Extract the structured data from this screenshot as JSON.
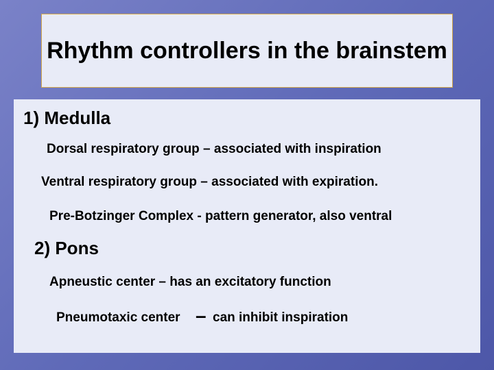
{
  "slide": {
    "background_gradient": [
      "#7a82c8",
      "#5f6ab8",
      "#4d57a8"
    ],
    "title_box": {
      "border_color": "#d4a84a",
      "background_color": "#e8ebf7",
      "text": "Rhythm controllers in the brainstem",
      "font_size": 34,
      "font_weight": "bold",
      "text_color": "#000000"
    },
    "content_box": {
      "background_color": "#e8ebf7",
      "headings": [
        {
          "number": "1)",
          "label": "Medulla",
          "text": "1)   Medulla"
        },
        {
          "number": "2)",
          "label": "Pons",
          "text": "2)   Pons"
        }
      ],
      "lines": {
        "l1": "Dorsal respiratory group – associated with inspiration",
        "l2": "Ventral respiratory group – associated with expiration.",
        "l3": "Pre-Botzinger Complex -  pattern generator, also ventral",
        "l4": "Apneustic center – has an excitatory   function",
        "l5a": "Pneumotaxic center",
        "l5b": "–",
        "l5c": "can inhibit inspiration"
      },
      "heading_font_size": 26,
      "body_font_size": 19,
      "text_color": "#000000"
    }
  }
}
